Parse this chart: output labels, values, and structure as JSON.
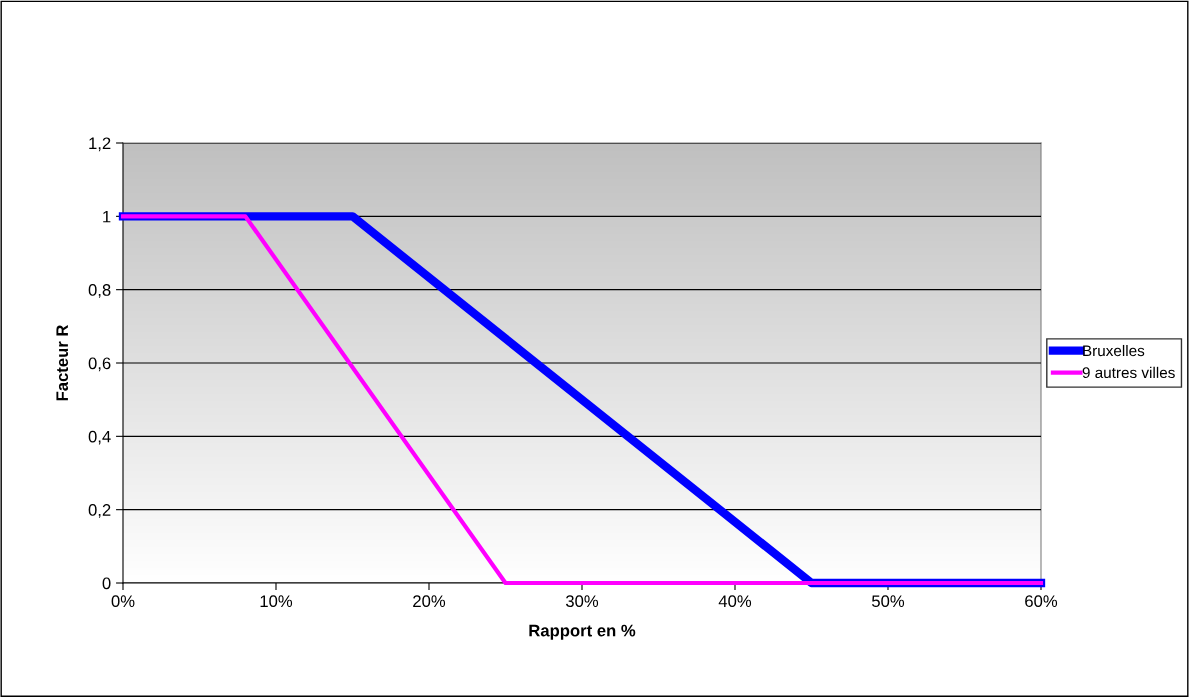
{
  "chart_data": {
    "type": "line",
    "xlabel": "Rapport en %",
    "ylabel": "Facteur R",
    "series": [
      {
        "name": "Bruxelles",
        "color": "#0000ff",
        "x": [
          0,
          15,
          45,
          60
        ],
        "values": [
          1,
          1,
          0,
          0
        ]
      },
      {
        "name": "9 autres villes",
        "color": "#ff00ff",
        "x": [
          0,
          8,
          25,
          60
        ],
        "values": [
          1,
          1,
          0,
          0
        ]
      }
    ],
    "xlim": [
      0,
      60
    ],
    "xticks": [
      {
        "value": 0,
        "label": "0%"
      },
      {
        "value": 10,
        "label": "10%"
      },
      {
        "value": 20,
        "label": "20%"
      },
      {
        "value": 30,
        "label": "30%"
      },
      {
        "value": 40,
        "label": "40%"
      },
      {
        "value": 50,
        "label": "50%"
      },
      {
        "value": 60,
        "label": "60%"
      }
    ],
    "ylim": [
      0,
      1.2
    ],
    "yticks": [
      0,
      {
        "value": 0.2,
        "label": "0,2"
      },
      {
        "value": 0.4,
        "label": "0,4"
      },
      {
        "value": 0.6,
        "label": "0,6"
      },
      {
        "value": 0.8,
        "label": "0,8"
      },
      1,
      {
        "value": 1.2,
        "label": "1,2"
      }
    ],
    "grid": "y",
    "legend": "right",
    "marker": "none",
    "line_style": "solid"
  }
}
